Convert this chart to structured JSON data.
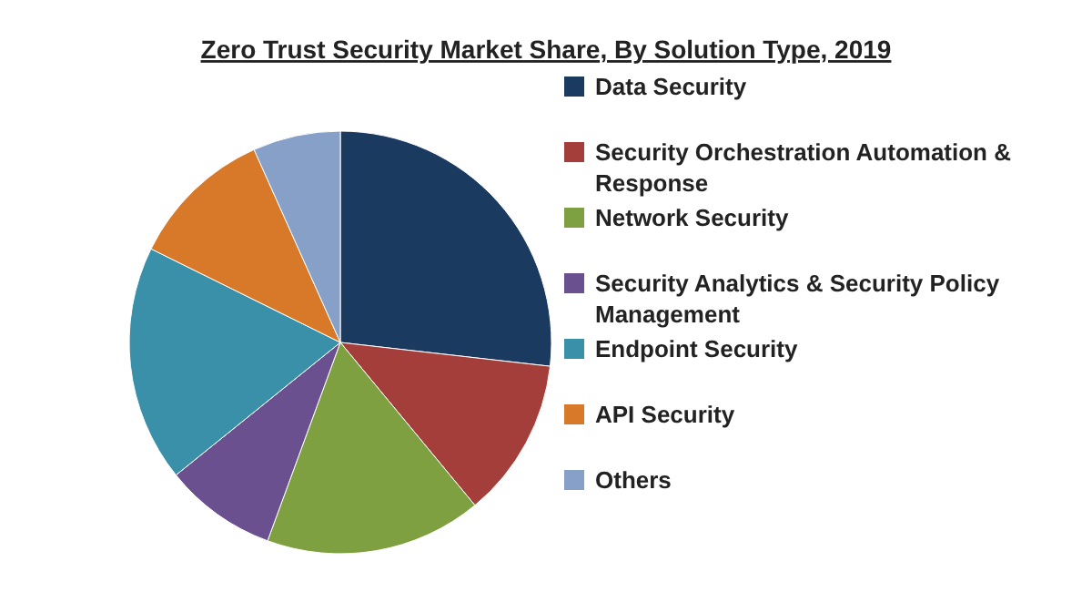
{
  "chart_data": {
    "type": "pie",
    "title": "Zero Trust Security Market Share, By Solution Type, 2019",
    "categories": [
      "Data Security",
      "Security Orchestration Automation & Response",
      "Network Security",
      "Security Analytics & Security Policy Management",
      "Endpoint Security",
      "API Security",
      "Others"
    ],
    "values": [
      26.8,
      12.2,
      16.6,
      8.6,
      18.1,
      11.0,
      6.7
    ],
    "colors": [
      "#1b3a5f",
      "#a33e3a",
      "#7fa040",
      "#6b5090",
      "#3990a8",
      "#d8792a",
      "#86a0c8"
    ],
    "legend": "right"
  }
}
